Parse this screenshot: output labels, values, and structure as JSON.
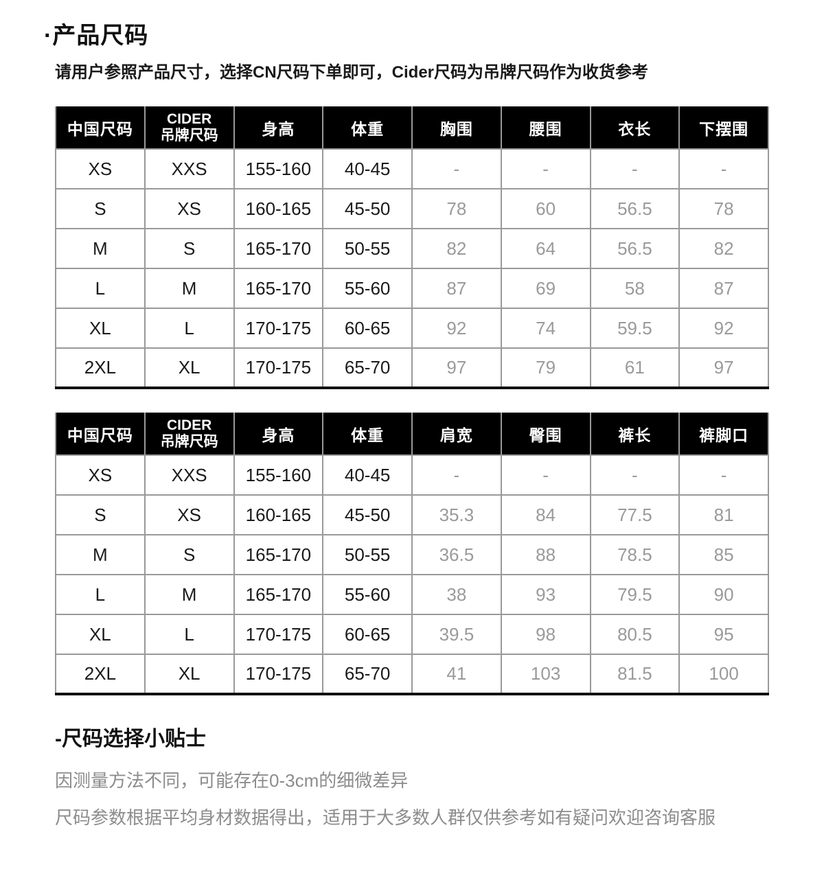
{
  "page": {
    "title": "·产品尺码",
    "subtitle": "请用户参照产品尺寸，选择CN尺码下单即可，Cider尺码为吊牌尺码作为收货参考"
  },
  "size_tables": [
    {
      "name": "top-size-table",
      "headers": [
        "中国尺码",
        "CIDER\n吊牌尺码",
        "身高",
        "体重",
        "胸围",
        "腰围",
        "衣长",
        "下摆围"
      ],
      "rows": [
        [
          "XS",
          "XXS",
          "155-160",
          "40-45",
          "-",
          "-",
          "-",
          "-"
        ],
        [
          "S",
          "XS",
          "160-165",
          "45-50",
          "78",
          "60",
          "56.5",
          "78"
        ],
        [
          "M",
          "S",
          "165-170",
          "50-55",
          "82",
          "64",
          "56.5",
          "82"
        ],
        [
          "L",
          "M",
          "165-170",
          "55-60",
          "87",
          "69",
          "58",
          "87"
        ],
        [
          "XL",
          "L",
          "170-175",
          "60-65",
          "92",
          "74",
          "59.5",
          "92"
        ],
        [
          "2XL",
          "XL",
          "170-175",
          "65-70",
          "97",
          "79",
          "61",
          "97"
        ]
      ]
    },
    {
      "name": "bottom-size-table",
      "headers": [
        "中国尺码",
        "CIDER\n吊牌尺码",
        "身高",
        "体重",
        "肩宽",
        "臀围",
        "裤长",
        "裤脚口"
      ],
      "rows": [
        [
          "XS",
          "XXS",
          "155-160",
          "40-45",
          "-",
          "-",
          "-",
          "-"
        ],
        [
          "S",
          "XS",
          "160-165",
          "45-50",
          "35.3",
          "84",
          "77.5",
          "81"
        ],
        [
          "M",
          "S",
          "165-170",
          "50-55",
          "36.5",
          "88",
          "78.5",
          "85"
        ],
        [
          "L",
          "M",
          "165-170",
          "55-60",
          "38",
          "93",
          "79.5",
          "90"
        ],
        [
          "XL",
          "L",
          "170-175",
          "60-65",
          "39.5",
          "98",
          "80.5",
          "95"
        ],
        [
          "2XL",
          "XL",
          "170-175",
          "65-70",
          "41",
          "103",
          "81.5",
          "100"
        ]
      ]
    }
  ],
  "tips": {
    "heading": "-尺码选择小贴士",
    "lines": [
      "因测量方法不同，可能存在0-3cm的细微差异",
      "尺码参数根据平均身材数据得出，适用于大多数人群仅供参考如有疑问欢迎咨询客服"
    ]
  },
  "colors": {
    "header_bg": "#000000",
    "header_text": "#ffffff",
    "primary_text": "#1a1a1a",
    "measurement_text": "#9a9a9a",
    "border": "#999999",
    "table_bottom_border": "#111111",
    "tip_text": "#8c8c8c"
  }
}
